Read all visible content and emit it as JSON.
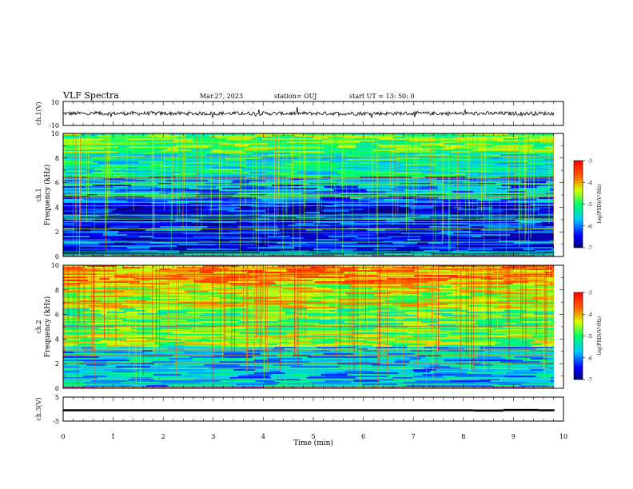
{
  "header": {
    "title": "VLF Spectra",
    "date": "Mar.27, 2023",
    "station": "station= OUJ",
    "start": "start  UT  =   13: 50: 0"
  },
  "chart_data": [
    {
      "type": "line",
      "name": "ch1-waveform",
      "ylabel": "ch.1(V)",
      "ylim": [
        -10,
        10
      ],
      "yticks": [
        "10",
        "-10"
      ],
      "xlim": [
        0,
        10
      ],
      "baseline": 0,
      "color": "#000000"
    },
    {
      "type": "heatmap",
      "name": "ch1-spectrogram",
      "ylabel_top": "ch.1",
      "ylabel": "Frequency (kHz)",
      "ylim": [
        0,
        10
      ],
      "yticks": [
        "0",
        "2",
        "4",
        "6",
        "8",
        "10"
      ],
      "xlim": [
        0,
        9.82
      ],
      "colorbar": {
        "label": "log(PSD)(V²/Hz)",
        "range": [
          -7,
          -3
        ],
        "ticks": [
          "-3",
          "-4",
          "-5",
          "-6",
          "-7"
        ]
      },
      "bands": [
        {
          "f": [
            8.5,
            10
          ],
          "level": -4.8
        },
        {
          "f": [
            6.5,
            8.5
          ],
          "level": -5.3
        },
        {
          "f": [
            4.5,
            6.5
          ],
          "level": -5.9
        },
        {
          "f": [
            3.5,
            4.5
          ],
          "level": -6.5
        },
        {
          "f": [
            0,
            3.5
          ],
          "level": -6.4
        }
      ]
    },
    {
      "type": "heatmap",
      "name": "ch2-spectrogram",
      "ylabel_top": "ch.2",
      "ylabel": "Frequency (kHz)",
      "ylim": [
        0,
        10
      ],
      "yticks": [
        "0",
        "2",
        "4",
        "6",
        "8",
        "10"
      ],
      "xlim": [
        0,
        9.82
      ],
      "colorbar": {
        "label": "log(PSD)(V²/Hz)",
        "range": [
          -7,
          -3
        ],
        "ticks": [
          "-3",
          "-4",
          "-5",
          "-6",
          "-7"
        ]
      },
      "bands": [
        {
          "f": [
            8.5,
            10
          ],
          "level": -3.9
        },
        {
          "f": [
            6.5,
            8.5
          ],
          "level": -4.4
        },
        {
          "f": [
            4.5,
            6.5
          ],
          "level": -4.9
        },
        {
          "f": [
            3.5,
            4.5
          ],
          "level": -4.6
        },
        {
          "f": [
            0,
            3.5
          ],
          "level": -5.7
        }
      ]
    },
    {
      "type": "line",
      "name": "ch3-waveform",
      "ylabel": "ch.3(V)",
      "ylim": [
        -5,
        5
      ],
      "yticks": [
        "5",
        "-5"
      ],
      "xlim": [
        0,
        10
      ],
      "xlabel": "Time (min)",
      "xticks": [
        "0",
        "1",
        "2",
        "3",
        "4",
        "5",
        "6",
        "7",
        "8",
        "9",
        "10"
      ],
      "segments": [
        {
          "x": [
            0,
            8.2
          ],
          "y": -0.5
        },
        {
          "x": [
            8.2,
            8.8
          ],
          "y": -0.6
        },
        {
          "x": [
            8.8,
            9.5
          ],
          "y": -0.4
        },
        {
          "x": [
            9.5,
            9.82
          ],
          "y": -0.5
        }
      ],
      "color": "#000000"
    }
  ]
}
